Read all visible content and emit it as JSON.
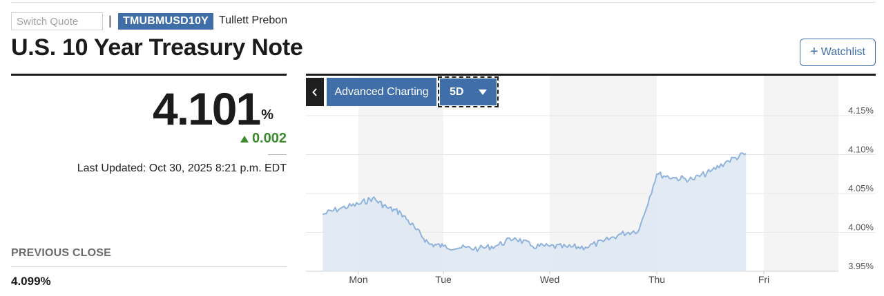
{
  "header": {
    "search_placeholder": "Switch Quote",
    "separator": "|",
    "ticker": "TMUBMUSD10Y",
    "exchange": "Tullett Prebon",
    "title": "U.S. 10 Year Treasury Note",
    "watchlist_label": "Watchlist",
    "watchlist_icon": "plus-icon"
  },
  "quote": {
    "price": "4.101",
    "unit": "%",
    "change": "0.002",
    "change_direction": "up",
    "change_color": "#3b8a2b",
    "last_updated": "Last Updated: Oct 30, 2025 8:21 p.m. EDT",
    "previous_close_label": "PREVIOUS CLOSE",
    "previous_close_value": "4.099%"
  },
  "chart_controls": {
    "back_icon": "chevron-left-icon",
    "advanced_charting_label": "Advanced Charting",
    "range_label": "5D",
    "range_icon": "caret-down-icon"
  },
  "colors": {
    "accent": "#3f6ea8",
    "line": "#8fb3dc",
    "fill": "#dde7f2",
    "band": "#f4f4f4"
  },
  "chart_data": {
    "type": "area",
    "x_tick_labels": [
      "Mon",
      "Tue",
      "Wed",
      "Thu",
      "Fri"
    ],
    "y_tick_labels": [
      "4.15%",
      "4.10%",
      "4.05%",
      "4.00%",
      "3.95%"
    ],
    "ylim": [
      3.95,
      4.15
    ],
    "grid": true,
    "shaded_day_bands": [
      "Mon",
      "Wed",
      "Fri"
    ],
    "series": [
      {
        "x": [
          "Fri 16:00",
          "Fri 20:00",
          "Mon 00:00",
          "Mon 04:00",
          "Mon 08:00",
          "Mon 12:00",
          "Mon 16:00",
          "Mon 20:00",
          "Tue 00:00",
          "Tue 04:00",
          "Tue 08:00",
          "Tue 12:00",
          "Tue 16:00",
          "Tue 20:00",
          "Wed 00:00",
          "Wed 04:00",
          "Wed 08:00",
          "Wed 12:00",
          "Wed 16:00",
          "Wed 20:00",
          "Thu 00:00",
          "Thu 04:00",
          "Thu 08:00",
          "Thu 12:00",
          "Thu 16:00",
          "Thu 20:00"
        ],
        "values": [
          4.023,
          4.031,
          4.036,
          4.044,
          4.032,
          4.025,
          4.005,
          3.985,
          3.982,
          3.98,
          3.979,
          3.983,
          3.993,
          3.982,
          3.982,
          3.981,
          3.981,
          3.988,
          3.998,
          4.003,
          4.075,
          4.07,
          4.068,
          4.078,
          4.092,
          4.101
        ]
      }
    ]
  }
}
